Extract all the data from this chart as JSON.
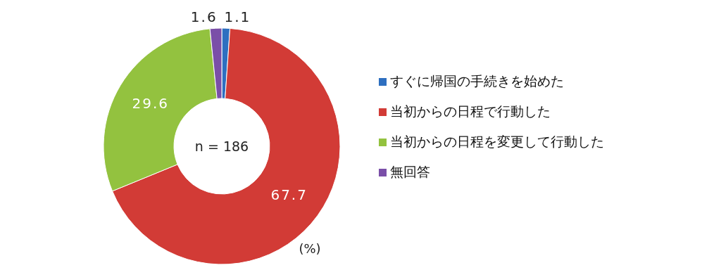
{
  "chart_data": {
    "type": "donut",
    "categories": [
      "すぐに帰国の手続きを始めた",
      "当初からの日程で行動した",
      "当初からの日程を変更して行動した",
      "無回答"
    ],
    "values": [
      1.1,
      67.7,
      29.6,
      1.6
    ],
    "colors": [
      "#2e6fc0",
      "#d23b36",
      "#93c23f",
      "#7a4fa8"
    ],
    "data_labels": true,
    "legend": "right",
    "annotations": [
      "n = 186",
      "(%)"
    ]
  }
}
